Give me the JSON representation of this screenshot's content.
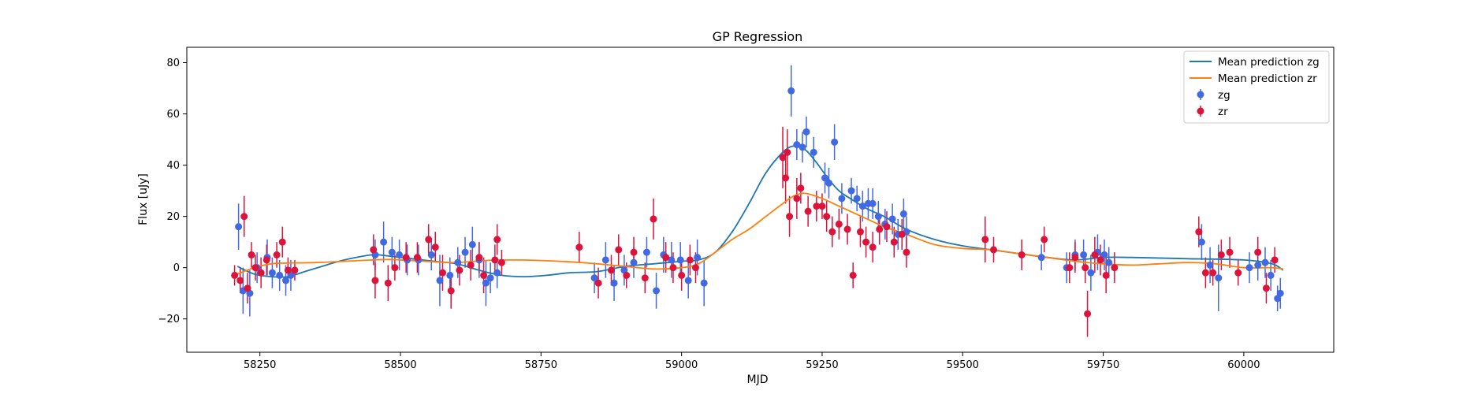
{
  "chart_data": {
    "type": "scatter",
    "title": "GP Regression",
    "xlabel": "MJD",
    "ylabel": "Flux [uJy]",
    "xlim": [
      58120,
      60160
    ],
    "ylim": [
      -33,
      86
    ],
    "xticks": [
      58250,
      58500,
      58750,
      59000,
      59250,
      59500,
      59750,
      60000
    ],
    "yticks": [
      -20,
      0,
      20,
      40,
      60,
      80
    ],
    "legend_position": "top-right",
    "legend": [
      "Mean prediction zg",
      "Mean prediction zr",
      "zg",
      "zr"
    ],
    "colors": {
      "zg_points": "#4169e1",
      "zr_points": "#dc143c",
      "zg_line": "#1f77b4",
      "zr_line": "#ff7f0e"
    },
    "series": [
      {
        "name": "Mean prediction zg",
        "kind": "line",
        "x": [
          58210,
          58240,
          58270,
          58300,
          58330,
          58360,
          58400,
          58450,
          58480,
          58520,
          58560,
          58600,
          58640,
          58680,
          58720,
          58760,
          58800,
          58850,
          58900,
          58950,
          59000,
          59030,
          59060,
          59090,
          59120,
          59150,
          59180,
          59200,
          59220,
          59240,
          59260,
          59280,
          59300,
          59330,
          59360,
          59400,
          59450,
          59500,
          59550,
          59600,
          59650,
          59700,
          59750,
          59800,
          59900,
          60000,
          60050,
          60070
        ],
        "y": [
          0.5,
          -2.5,
          -3.5,
          -3.5,
          -1.5,
          0.5,
          3,
          5,
          4.5,
          3.5,
          2.5,
          1.5,
          -1,
          -3,
          -3.5,
          -3,
          -2,
          -1.5,
          0.5,
          1.5,
          2.5,
          3,
          6,
          14,
          25,
          37,
          45,
          47.5,
          46,
          41,
          35,
          30,
          27,
          23,
          20,
          15,
          11,
          8.5,
          7,
          5.5,
          4,
          3,
          4,
          4,
          3.5,
          3,
          1.5,
          -1
        ]
      },
      {
        "name": "Mean prediction zr",
        "kind": "line",
        "x": [
          58210,
          58240,
          58270,
          58300,
          58350,
          58400,
          58450,
          58480,
          58520,
          58560,
          58600,
          58650,
          58700,
          58750,
          58800,
          58850,
          58900,
          58950,
          59000,
          59030,
          59060,
          59090,
          59120,
          59150,
          59180,
          59200,
          59220,
          59250,
          59280,
          59300,
          59330,
          59360,
          59400,
          59450,
          59500,
          59550,
          59600,
          59650,
          59700,
          59750,
          59800,
          59850,
          59900,
          59950,
          60000,
          60050,
          60070
        ],
        "y": [
          -2.5,
          0,
          1.5,
          1.8,
          2,
          2.5,
          3,
          3.2,
          2.8,
          2.3,
          2,
          2.8,
          3,
          2.8,
          2.3,
          1.5,
          0.5,
          -0.5,
          0,
          1.5,
          6,
          11,
          15,
          20,
          25,
          28,
          29,
          27,
          24,
          22,
          19,
          16,
          13,
          9,
          7.5,
          7,
          5.5,
          4,
          2.5,
          1.5,
          1,
          1.5,
          2,
          1.5,
          0,
          0,
          -0.5
        ]
      },
      {
        "name": "zg",
        "kind": "errorbar",
        "x": [
          58212,
          58220,
          58232,
          58245,
          58263,
          58272,
          58285,
          58296,
          58305,
          58455,
          58470,
          58485,
          58498,
          58512,
          58532,
          58555,
          58570,
          58588,
          58602,
          58615,
          58628,
          58640,
          58652,
          58660,
          58672,
          58845,
          58865,
          58880,
          58898,
          58915,
          58938,
          58955,
          58968,
          58982,
          58998,
          59012,
          59028,
          59040,
          59195,
          59205,
          59215,
          59222,
          59235,
          59255,
          59262,
          59272,
          59285,
          59302,
          59312,
          59322,
          59332,
          59340,
          59350,
          59362,
          59375,
          59385,
          59395,
          59400,
          59640,
          59685,
          59700,
          59715,
          59728,
          59740,
          59752,
          59760,
          59925,
          59940,
          59955,
          60010,
          60025,
          60038,
          60048,
          60060,
          60065
        ],
        "y": [
          16,
          -9,
          -10,
          0,
          4,
          -2,
          -3,
          -5,
          -3,
          5,
          10,
          6,
          5,
          3,
          3,
          5,
          -5,
          -3,
          2,
          6,
          9,
          3,
          -6,
          -4,
          -2,
          -4,
          3,
          -6,
          -1,
          2,
          6,
          -9,
          5,
          3,
          3,
          -5,
          4,
          -6,
          69,
          48,
          47,
          53,
          45,
          35,
          33,
          49,
          27,
          30,
          27,
          24,
          25,
          25,
          20,
          17,
          19,
          13,
          21,
          14,
          4,
          0,
          5,
          5,
          -2,
          6,
          5,
          2,
          10,
          1,
          -4,
          0,
          1,
          2,
          -3,
          -12,
          -10
        ],
        "yerr": [
          9,
          9,
          9,
          6,
          7,
          6,
          6,
          6,
          6,
          6,
          8,
          6,
          6,
          6,
          6,
          6,
          10,
          7,
          6,
          6,
          7,
          7,
          9,
          6,
          6,
          6,
          7,
          7,
          6,
          6,
          6,
          7,
          7,
          7,
          7,
          7,
          7,
          9,
          10,
          6,
          6,
          6,
          6,
          6,
          6,
          7,
          6,
          5,
          5,
          6,
          6,
          6,
          6,
          6,
          6,
          6,
          6,
          6,
          5,
          6,
          6,
          6,
          7,
          7,
          6,
          6,
          7,
          7,
          13,
          6,
          6,
          6,
          6,
          5,
          6
        ]
      },
      {
        "name": "zr",
        "kind": "errorbar",
        "x": [
          58205,
          58215,
          58222,
          58228,
          58235,
          58242,
          58252,
          58262,
          58280,
          58290,
          58300,
          58312,
          58452,
          58455,
          58478,
          58490,
          58510,
          58530,
          58550,
          58562,
          58575,
          58590,
          58605,
          58625,
          58640,
          58648,
          58668,
          58672,
          58680,
          58818,
          58852,
          58875,
          58888,
          58902,
          58915,
          58935,
          58950,
          58972,
          58985,
          59000,
          59015,
          59025,
          59180,
          59185,
          59188,
          59192,
          59205,
          59212,
          59225,
          59240,
          59250,
          59258,
          59268,
          59280,
          59295,
          59305,
          59318,
          59328,
          59340,
          59352,
          59365,
          59378,
          59392,
          59400,
          59540,
          59555,
          59605,
          59645,
          59690,
          59700,
          59718,
          59722,
          59735,
          59745,
          59755,
          59770,
          59920,
          59932,
          59945,
          59960,
          59975,
          59990,
          60025,
          60040,
          60055
        ],
        "y": [
          -3,
          -5,
          20,
          -8,
          5,
          0,
          -2,
          3,
          5,
          10,
          -1,
          -1,
          7,
          -5,
          -6,
          0,
          4,
          4,
          11,
          8,
          -2,
          -9,
          -1,
          1,
          4,
          -3,
          3,
          11,
          2,
          8,
          -6,
          -1,
          7,
          -3,
          6,
          -4,
          19,
          4,
          0,
          -3,
          3,
          0,
          43,
          35,
          45,
          20,
          27,
          31,
          22,
          24,
          24,
          20,
          14,
          17,
          15,
          -3,
          14,
          10,
          8,
          15,
          16,
          10,
          13,
          6,
          11,
          7,
          5,
          11,
          0,
          4,
          0,
          -18,
          5,
          3,
          -3,
          0,
          14,
          -2,
          -2,
          5,
          6,
          -2,
          6,
          -8,
          3
        ],
        "yerr": [
          4,
          5,
          8,
          6,
          5,
          5,
          6,
          6,
          5,
          6,
          5,
          4,
          6,
          7,
          7,
          5,
          6,
          6,
          6,
          6,
          7,
          7,
          6,
          6,
          6,
          7,
          6,
          6,
          5,
          6,
          6,
          6,
          6,
          5,
          6,
          6,
          8,
          6,
          6,
          6,
          6,
          6,
          12,
          10,
          9,
          8,
          8,
          6,
          6,
          6,
          5,
          6,
          6,
          6,
          6,
          5,
          6,
          6,
          6,
          6,
          6,
          6,
          6,
          6,
          9,
          5,
          6,
          5,
          6,
          6,
          6,
          9,
          7,
          6,
          7,
          6,
          6,
          6,
          5,
          6,
          6,
          5,
          6,
          6,
          5
        ]
      }
    ]
  }
}
